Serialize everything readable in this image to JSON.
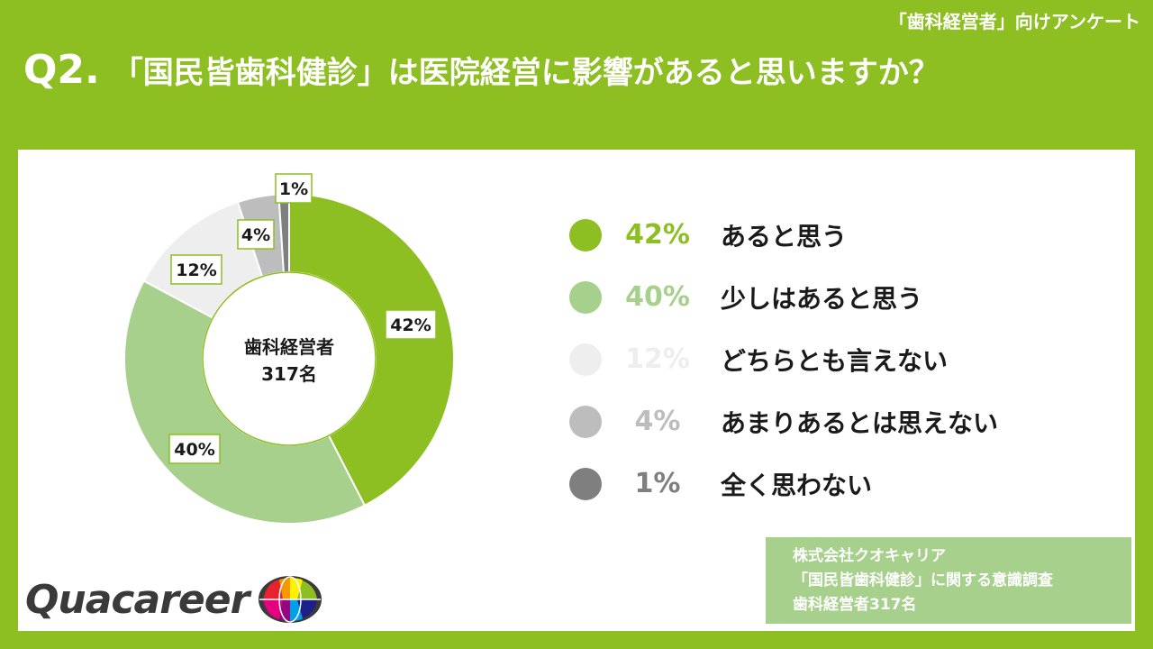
{
  "header": {
    "survey_tag": "「歯科経営者」向けアンケート",
    "question_number": "Q2.",
    "question_text": "「国民皆歯科健診」は医院経営に影響があると思いますか？"
  },
  "chart_data": {
    "type": "pie",
    "donut": true,
    "center_label": [
      "歯科経営者",
      "317名"
    ],
    "categories": [
      "あると思う",
      "少しはあると思う",
      "どちらとも言えない",
      "あまりあるとは思えない",
      "全く思わない"
    ],
    "values": [
      42,
      40,
      12,
      4,
      1
    ],
    "value_labels": [
      "42%",
      "40%",
      "12%",
      "4%",
      "1%"
    ],
    "colors": [
      "#8dbe22",
      "#a6d08b",
      "#eeeeee",
      "#bdbdbd",
      "#7f7f7f"
    ],
    "legend_placement": "right"
  },
  "source": {
    "lines": [
      "株式会社クオキャリア",
      "「国民皆歯科健診」に関する意識調査",
      "歯科経営者317名"
    ]
  },
  "logo": {
    "text": "Quacareer",
    "icon": "globe-logo-icon"
  }
}
